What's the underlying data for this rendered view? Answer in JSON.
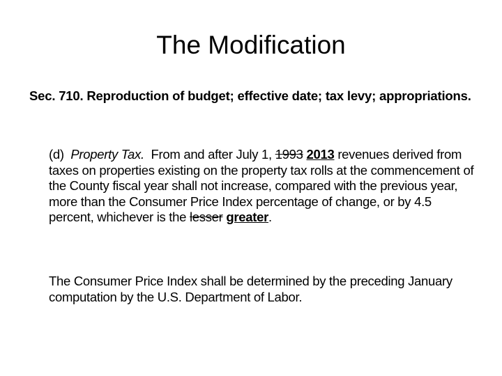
{
  "title": "The Modification",
  "heading": "Sec. 710.  Reproduction of budget; effective date; tax levy; appropriations.",
  "paragraphs": [
    [
      {
        "text": "(d)  ",
        "style": "normal"
      },
      {
        "text": "Property Tax.",
        "style": "italic"
      },
      {
        "text": "  From and after July 1, ",
        "style": "normal"
      },
      {
        "text": "1993",
        "style": "strike"
      },
      {
        "text": " ",
        "style": "normal"
      },
      {
        "text": "2013",
        "style": "bold-underline"
      },
      {
        "text": " revenues derived from taxes on properties existing on the property tax rolls at the commencement of the County fiscal year shall not increase, compared with the previous year, more than the Consumer Price Index percentage of change, or by 4.5 percent, whichever is the ",
        "style": "normal"
      },
      {
        "text": "lesser",
        "style": "strike"
      },
      {
        "text": " ",
        "style": "normal"
      },
      {
        "text": "greater",
        "style": "bold-underline"
      },
      {
        "text": ".",
        "style": "normal"
      }
    ],
    [
      {
        "text": "The Consumer Price Index shall be determined by the preceding January computation by the U.S. Department of Labor.",
        "style": "normal"
      }
    ]
  ]
}
